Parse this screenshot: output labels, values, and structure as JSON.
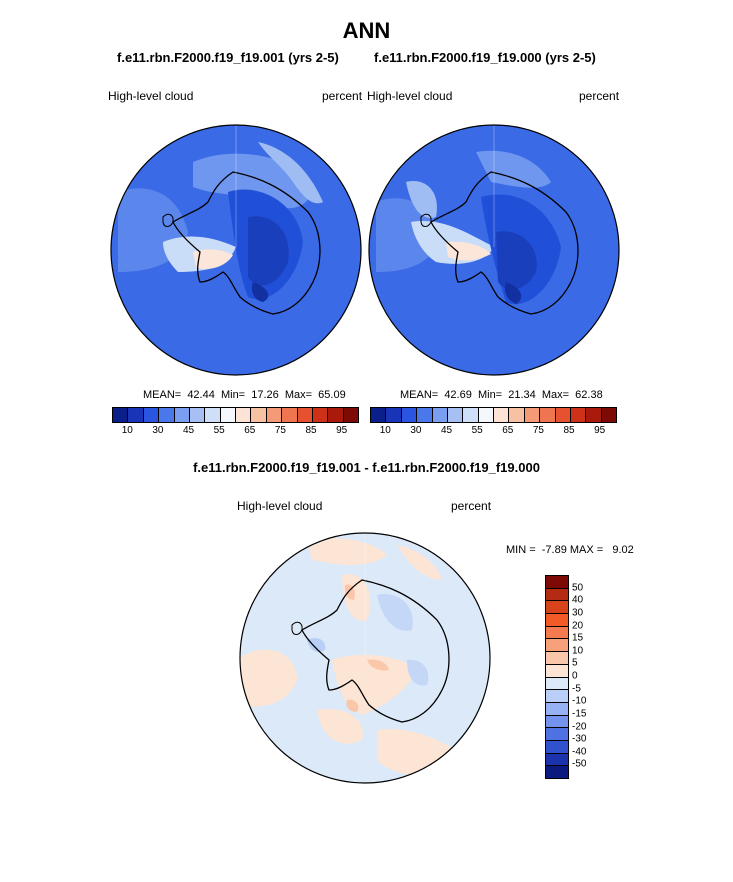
{
  "page": {
    "season": "ANN",
    "diff_title": "f.e11.rbn.F2000.f19_f19.001 - f.e11.rbn.F2000.f19_f19.000"
  },
  "panels": [
    {
      "case": "f.e11.rbn.F2000.f19_f19.001 (yrs 2-5)",
      "variable": "High-level cloud",
      "units": "percent",
      "stats": "MEAN=  42.44  Min=  17.26  Max=  65.09"
    },
    {
      "case": "f.e11.rbn.F2000.f19_f19.000 (yrs 2-5)",
      "variable": "High-level cloud",
      "units": "percent",
      "stats": "MEAN=  42.69  Min=  21.34  Max=  62.38"
    }
  ],
  "diff_panel": {
    "variable": "High-level cloud",
    "units": "percent",
    "stats": "MIN =  -7.89 MAX =   9.02"
  },
  "abs_colorbar": {
    "colors": [
      "#0a1f8a",
      "#1a34b8",
      "#2a55e0",
      "#4a78ea",
      "#7a9ef0",
      "#a6c0f4",
      "#cfdff8",
      "#f4f8fd",
      "#fce3d6",
      "#f8c1a4",
      "#f49a77",
      "#ef7550",
      "#e65230",
      "#cd3118",
      "#aa1a0c",
      "#7e0a05"
    ],
    "tick_labels": [
      "10",
      "30",
      "45",
      "55",
      "65",
      "75",
      "85",
      "95"
    ]
  },
  "diff_colorbar": {
    "colors": [
      "#7e0a05",
      "#b52a12",
      "#d8431c",
      "#f25a28",
      "#f47b50",
      "#f7a07c",
      "#fbc7ab",
      "#fde5d5",
      "#dbe9f9",
      "#b9cff7",
      "#97b2f2",
      "#7393ec",
      "#4f72e2",
      "#3152cf",
      "#1b33ad",
      "#0b1a7e"
    ],
    "tick_labels": [
      "50",
      "40",
      "30",
      "20",
      "15",
      "10",
      "5",
      "0",
      "-5",
      "-10",
      "-15",
      "-20",
      "-30",
      "-40",
      "-50"
    ]
  }
}
